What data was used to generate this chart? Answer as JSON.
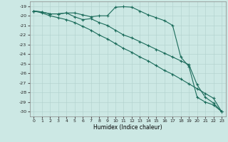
{
  "title": "",
  "xlabel": "Humidex (Indice chaleur)",
  "background_color": "#cce8e4",
  "grid_color": "#b0d0cc",
  "line_color": "#1a6b5a",
  "xlim": [
    -0.5,
    23.5
  ],
  "ylim": [
    -30.5,
    -18.5
  ],
  "xticks": [
    0,
    1,
    2,
    3,
    4,
    5,
    6,
    7,
    8,
    9,
    10,
    11,
    12,
    13,
    14,
    15,
    16,
    17,
    18,
    19,
    20,
    21,
    22,
    23
  ],
  "yticks": [
    -19,
    -20,
    -21,
    -22,
    -23,
    -24,
    -25,
    -26,
    -27,
    -28,
    -29,
    -30
  ],
  "line1_x": [
    0,
    1,
    2,
    3,
    4,
    5,
    6,
    7,
    8,
    9,
    10,
    11,
    12,
    13,
    14,
    15,
    16,
    17,
    18,
    19,
    20,
    21,
    22,
    23
  ],
  "line1_y": [
    -19.5,
    -19.6,
    -19.8,
    -19.8,
    -19.7,
    -19.7,
    -19.9,
    -20.1,
    -20.0,
    -20.0,
    -19.1,
    -19.05,
    -19.1,
    -19.5,
    -19.9,
    -20.2,
    -20.5,
    -21.0,
    -24.3,
    -25.3,
    -28.5,
    -29.0,
    -29.3,
    -30.0
  ],
  "line2_x": [
    0,
    1,
    2,
    3,
    4,
    5,
    6,
    7,
    8,
    9,
    10,
    11,
    12,
    13,
    14,
    15,
    16,
    17,
    18,
    19,
    20,
    21,
    22,
    23
  ],
  "line2_y": [
    -19.5,
    -19.6,
    -19.8,
    -19.8,
    -19.7,
    -20.1,
    -20.4,
    -20.3,
    -20.7,
    -21.0,
    -21.5,
    -22.0,
    -22.3,
    -22.7,
    -23.1,
    -23.5,
    -23.9,
    -24.3,
    -24.7,
    -25.1,
    -27.2,
    -28.5,
    -29.1,
    -30.0
  ],
  "line3_x": [
    0,
    1,
    2,
    3,
    4,
    5,
    6,
    7,
    8,
    9,
    10,
    11,
    12,
    13,
    14,
    15,
    16,
    17,
    18,
    19,
    20,
    21,
    22,
    23
  ],
  "line3_y": [
    -19.5,
    -19.7,
    -20.0,
    -20.2,
    -20.4,
    -20.7,
    -21.1,
    -21.5,
    -22.0,
    -22.4,
    -22.9,
    -23.4,
    -23.8,
    -24.3,
    -24.7,
    -25.2,
    -25.7,
    -26.1,
    -26.6,
    -27.1,
    -27.6,
    -28.1,
    -28.6,
    -30.0
  ]
}
